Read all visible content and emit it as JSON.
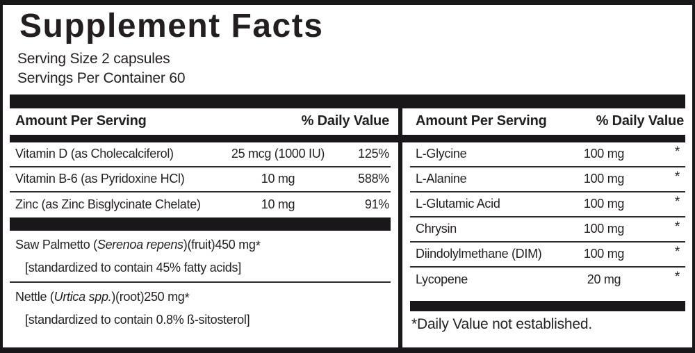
{
  "label": {
    "title": "Supplement Facts",
    "serving_size": "Serving Size 2 capsules",
    "servings_per_container": "Servings Per Container 60",
    "column_header": {
      "amount": "Amount Per Serving",
      "daily_value": "% Daily Value"
    },
    "footnote": "*Daily Value not established.",
    "colors": {
      "ink": "#231f20",
      "bar": "#1a171b",
      "background": "#ffffff"
    }
  },
  "left_column": {
    "rows": [
      {
        "name_pre": "Vitamin D (as Cholecalciferol)",
        "name_italic": "",
        "name_post": "",
        "amount": "25 mcg (1000 IU)",
        "daily_value": "125%"
      },
      {
        "name_pre": "Vitamin B-6 (as Pyridoxine HCl)",
        "name_italic": "",
        "name_post": "",
        "amount": "10 mg",
        "daily_value": "588%"
      },
      {
        "name_pre": "Zinc (as Zinc Bisglycinate Chelate)",
        "name_italic": "",
        "name_post": "",
        "amount": "10 mg",
        "daily_value": "91%"
      },
      {
        "name_pre": "Saw Palmetto (",
        "name_italic": "Serenoa repens",
        "name_post": ")(fruit)",
        "amount": "450 mg",
        "daily_value": "*",
        "detail": "[standardized to contain 45% fatty acids]"
      },
      {
        "name_pre": "Nettle (",
        "name_italic": "Urtica spp.",
        "name_post": ")(root)",
        "amount": "250 mg",
        "daily_value": "*",
        "detail": "[standardized to contain 0.8% ß-sitosterol]"
      }
    ]
  },
  "right_column": {
    "rows": [
      {
        "name": "L-Glycine",
        "amount": "100 mg",
        "daily_value": "*"
      },
      {
        "name": "L-Alanine",
        "amount": "100 mg",
        "daily_value": "*"
      },
      {
        "name": "L-Glutamic Acid",
        "amount": "100 mg",
        "daily_value": "*"
      },
      {
        "name": "Chrysin",
        "amount": "100 mg",
        "daily_value": "*"
      },
      {
        "name": "Diindolylmethane (DIM)",
        "amount": "100 mg",
        "daily_value": "*"
      },
      {
        "name": "Lycopene",
        "amount": "20 mg",
        "daily_value": "*"
      }
    ]
  }
}
